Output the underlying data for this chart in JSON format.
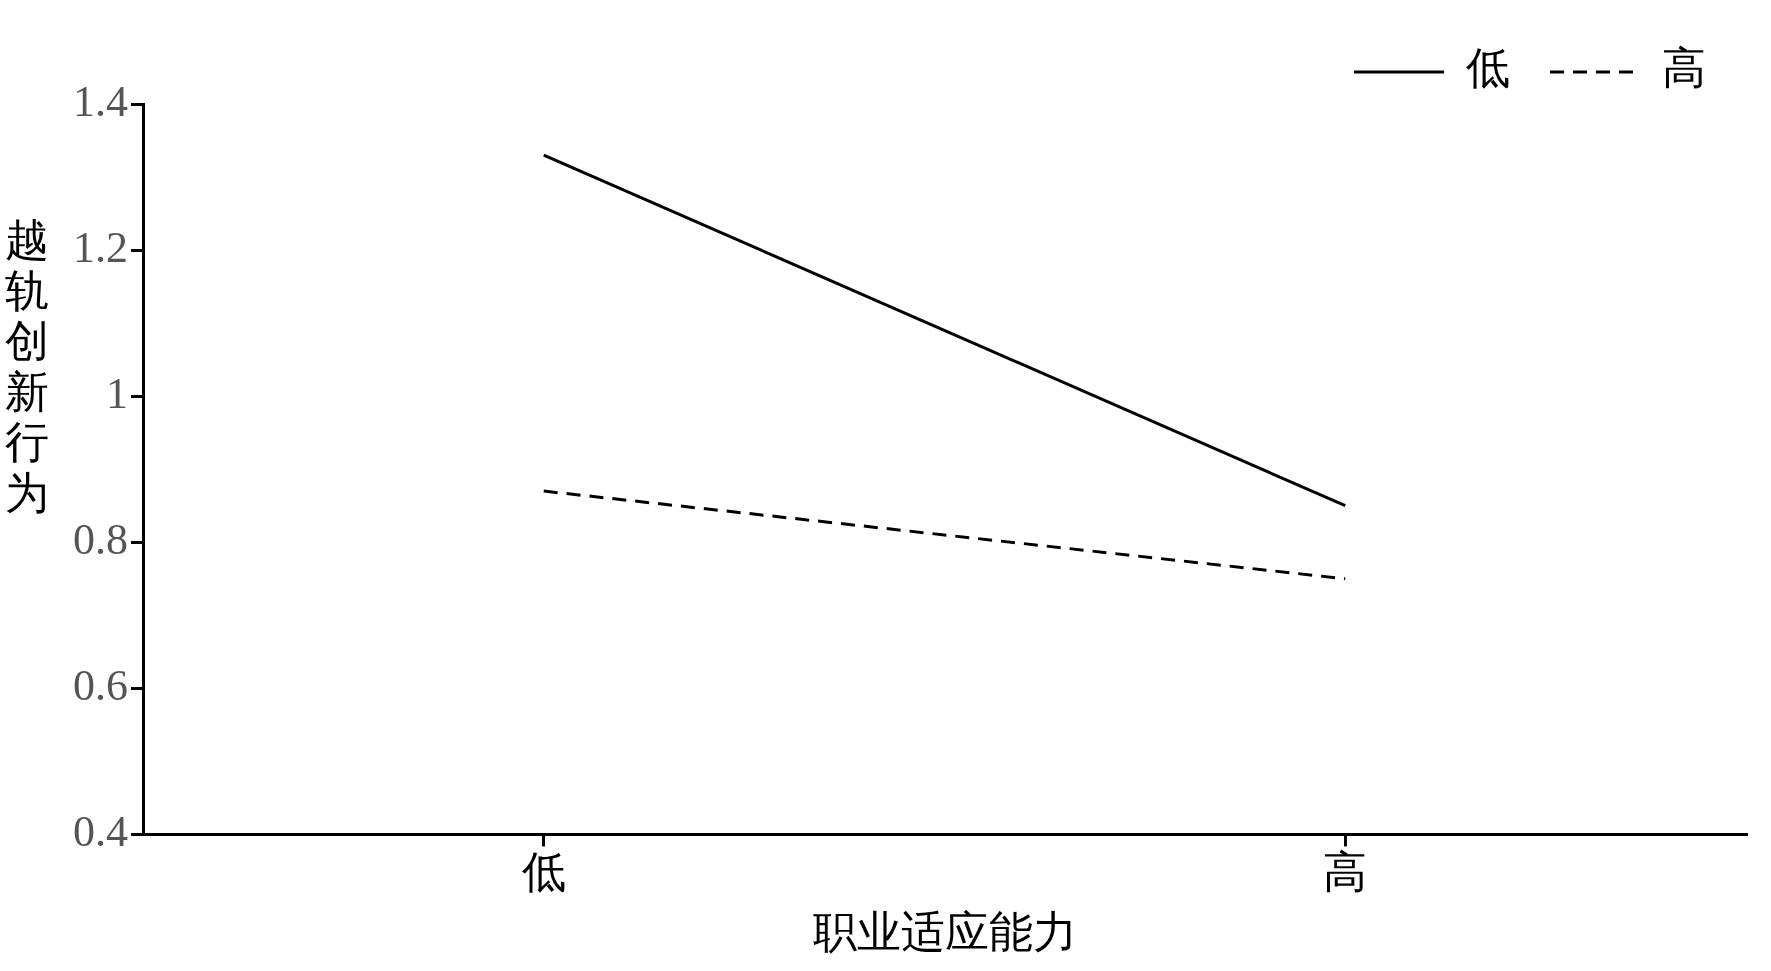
{
  "chart_data": {
    "type": "line",
    "xlabel": "职业适应能力",
    "ylabel": "越轨创新行为",
    "categories": [
      "低",
      "高"
    ],
    "series": [
      {
        "name": "低",
        "color": "#000000",
        "line_style": "solid",
        "values": [
          1.33,
          0.85
        ]
      },
      {
        "name": "高",
        "color": "#000000",
        "line_style": "dashed",
        "values": [
          0.87,
          0.75
        ]
      }
    ],
    "ylim": [
      0.4,
      1.4
    ],
    "yticks": [
      0.4,
      0.6,
      0.8,
      1,
      1.2,
      1.4
    ],
    "grid": false,
    "legend": "top right",
    "marker": "none"
  }
}
